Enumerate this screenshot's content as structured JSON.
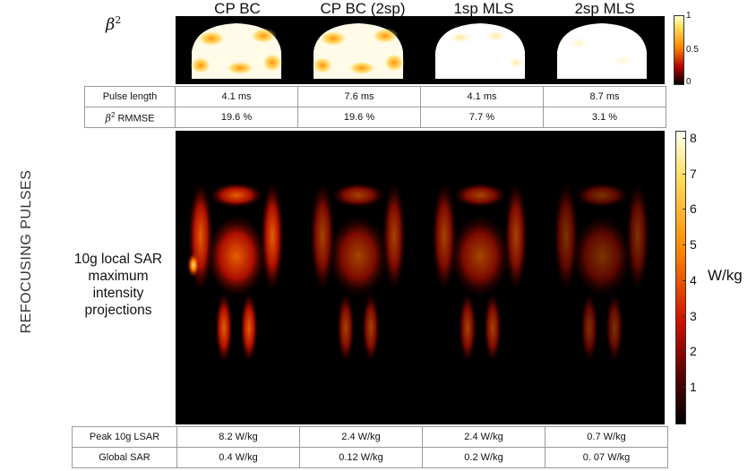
{
  "side_title": "REFOCUSING PULSES",
  "columns": [
    "CP BC",
    "CP BC (2sp)",
    "1sp MLS",
    "2sp MLS"
  ],
  "beta_label": {
    "symbol": "β",
    "exp": "2"
  },
  "top_colorbar": {
    "ticks": [
      "1",
      "0.5",
      "0"
    ],
    "colors": [
      "#fff9c0",
      "#ff7a00",
      "#000000"
    ]
  },
  "info_table": {
    "rows": [
      {
        "label": "Pulse length",
        "values": [
          "4.1 ms",
          "7.6 ms",
          "4.1 ms",
          "8.7 ms"
        ]
      },
      {
        "label_sym": "β",
        "label_exp": "2",
        "label_rest": " RMMSE",
        "values": [
          "19.6 %",
          "19.6 %",
          "7.7 %",
          "3.1 %"
        ]
      }
    ]
  },
  "sar_label": "10g local SAR maximum intensity projections",
  "sar_colorbar": {
    "ticks": [
      "8",
      "7",
      "6",
      "5",
      "4",
      "3",
      "2",
      "1"
    ],
    "unit": "W/kg",
    "max": 8.2
  },
  "bottom_table": {
    "rows": [
      {
        "label": "Peak 10g LSAR",
        "values": [
          "8.2 W/kg",
          "2.4 W/kg",
          "2.4 W/kg",
          "0.7 W/kg"
        ]
      },
      {
        "label": "Global SAR",
        "values": [
          "0.4 W/kg",
          "0.12 W/kg",
          "0.2 W/kg",
          "0. 07 W/kg"
        ]
      }
    ]
  },
  "map_intensity": {
    "beta_uniformity": [
      0.45,
      0.45,
      0.82,
      0.92
    ],
    "sar_brightness": [
      1.0,
      0.55,
      0.55,
      0.25
    ]
  }
}
